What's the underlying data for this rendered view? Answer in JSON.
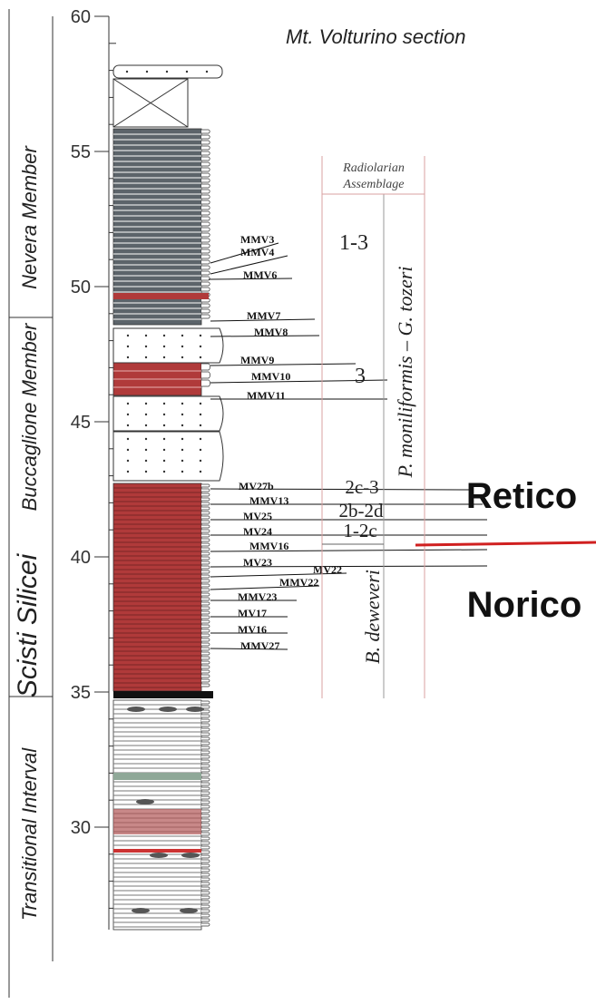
{
  "title": "Mt. Volturino section",
  "depth_labels": [
    60,
    55,
    50,
    45,
    40,
    35,
    30
  ],
  "units": [
    "Nevera Member",
    "Buccaglione Member",
    "Scisti Silicei",
    "Transitional Interval"
  ],
  "samples": [
    "MMV3",
    "MMV4",
    "MMV6",
    "MMV7",
    "MMV8",
    "MMV9",
    "MMV10",
    "MMV11",
    "MV27b",
    "MMV13",
    "MV25",
    "MV24",
    "MMV16",
    "MV23",
    "MV22",
    "MMV22",
    "MMV23",
    "MV17",
    "MV16",
    "MMV27"
  ],
  "assemblage": {
    "header": [
      "Radiolarian",
      "Assemblage"
    ],
    "zones": [
      "1-3",
      "3",
      "2c-3",
      "2b-2d",
      "1-2c"
    ]
  },
  "biozones": [
    "P. moniliformis  –  G. tozeri",
    "B. deweveri"
  ],
  "stages": [
    "Retico",
    "Norico"
  ]
}
